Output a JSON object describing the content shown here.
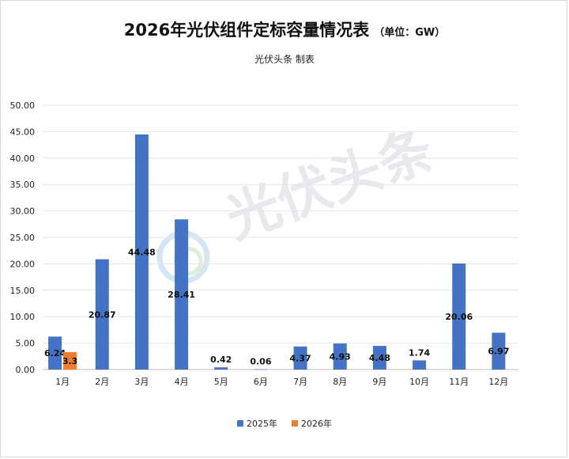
{
  "chart_data": {
    "type": "bar",
    "title": "2026年光伏组件定标容量情况表",
    "title_unit": "（单位：GW）",
    "subtitle": "光伏头条 制表",
    "watermark": "光伏头条",
    "categories": [
      "1月",
      "2月",
      "3月",
      "4月",
      "5月",
      "6月",
      "7月",
      "8月",
      "9月",
      "10月",
      "11月",
      "12月"
    ],
    "series": [
      {
        "name": "2025年",
        "color": "#4472C4",
        "values": [
          6.24,
          20.87,
          44.48,
          28.41,
          0.42,
          0.06,
          4.37,
          4.93,
          4.48,
          1.74,
          20.06,
          6.97
        ],
        "labels": [
          "6.24",
          "20.87",
          "44.48",
          "28.41",
          "0.42",
          "0.06",
          "4.37",
          "4.93",
          "4.48",
          "1.74",
          "20.06",
          "6.97"
        ]
      },
      {
        "name": "2026年",
        "color": "#ED7D31",
        "values": [
          3.3,
          null,
          null,
          null,
          null,
          null,
          null,
          null,
          null,
          null,
          null,
          null
        ],
        "labels": [
          "3.3",
          "",
          "",
          "",
          "",
          "",
          "",
          "",
          "",
          "",
          "",
          ""
        ]
      }
    ],
    "ylim": [
      0,
      50
    ],
    "yticks": [
      "0.00",
      "5.00",
      "10.00",
      "15.00",
      "20.00",
      "25.00",
      "30.00",
      "35.00",
      "40.00",
      "45.00",
      "50.00"
    ],
    "grid": true,
    "legend": "bottom"
  }
}
